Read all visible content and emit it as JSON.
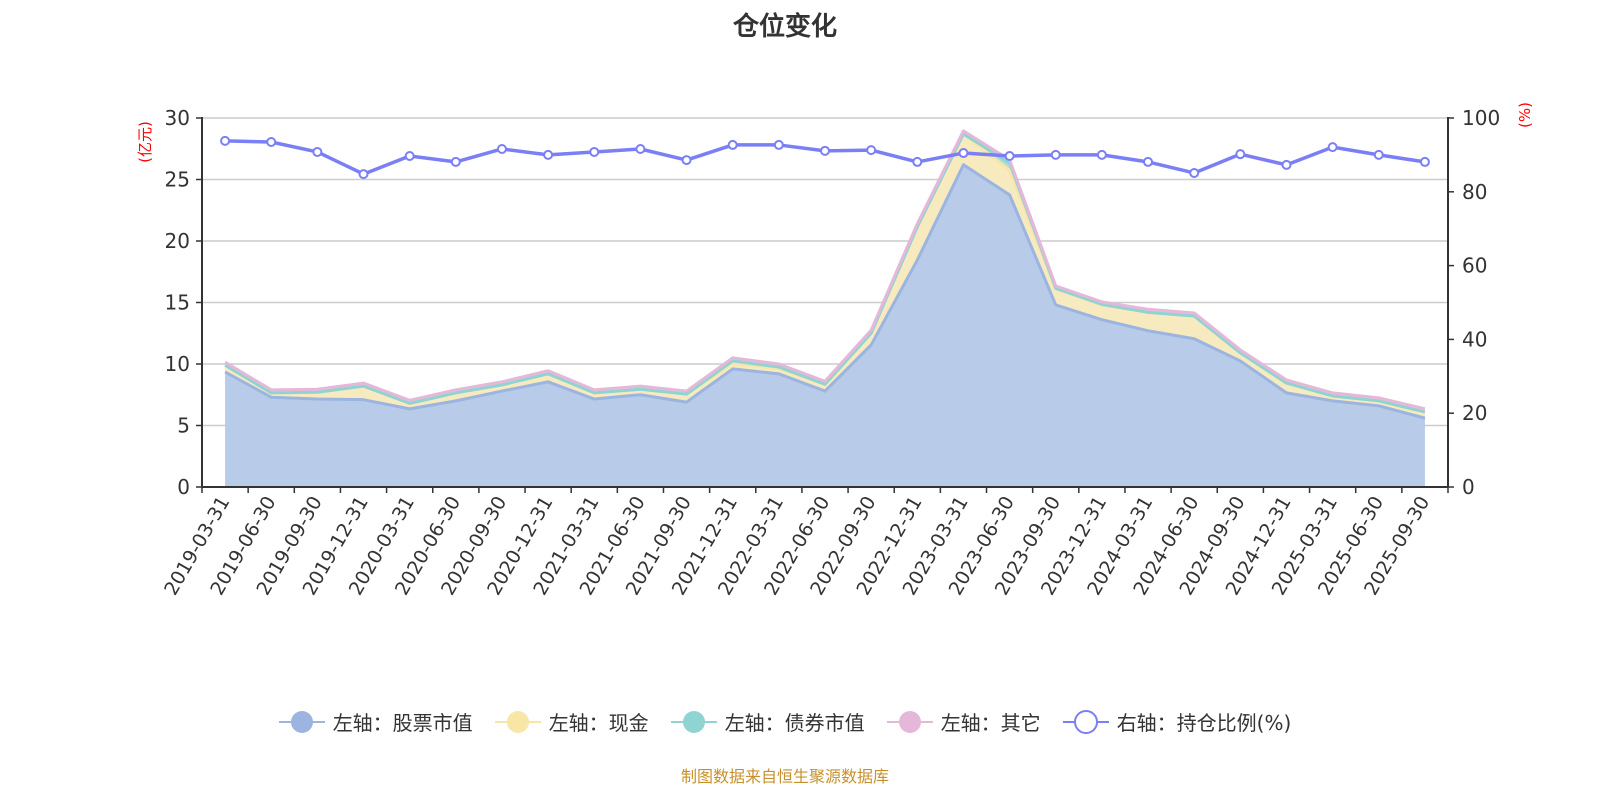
{
  "chart_data": {
    "type": "area",
    "title": "仓位变化",
    "left_axis_label": "(亿元)",
    "right_axis_label": "(%)",
    "left_ylim": [
      0,
      30
    ],
    "left_ticks": [
      0,
      5,
      10,
      15,
      20,
      25,
      30
    ],
    "right_ylim": [
      0,
      100
    ],
    "right_ticks": [
      0,
      20,
      40,
      60,
      80,
      100
    ],
    "grid": true,
    "legend_placement": "bottom",
    "categories": [
      "2019-03-31",
      "2019-06-30",
      "2019-09-30",
      "2019-12-31",
      "2020-03-31",
      "2020-06-30",
      "2020-09-30",
      "2020-12-31",
      "2021-03-31",
      "2021-06-30",
      "2021-09-30",
      "2021-12-31",
      "2022-03-31",
      "2022-06-30",
      "2022-09-30",
      "2022-12-31",
      "2023-03-31",
      "2023-06-30",
      "2023-09-30",
      "2023-12-31",
      "2024-03-31",
      "2024-06-30",
      "2024-09-30",
      "2024-12-31",
      "2025-03-31",
      "2025-06-30",
      "2025-09-30"
    ],
    "series": [
      {
        "name": "左轴：股票市值",
        "axis": "left",
        "stack": true,
        "color": "#9bb5e0",
        "fill": "#b8cbe8",
        "values": [
          9.35,
          7.3,
          7.15,
          7.1,
          6.35,
          7.0,
          7.8,
          8.55,
          7.15,
          7.5,
          6.9,
          9.6,
          9.2,
          7.8,
          11.55,
          18.45,
          26.2,
          23.75,
          14.8,
          13.6,
          12.7,
          12.05,
          10.25,
          7.65,
          7.0,
          6.6,
          5.6
        ]
      },
      {
        "name": "左轴：现金",
        "axis": "left",
        "stack": true,
        "color": "#f7e6a6",
        "fill": "#f8eabf",
        "values": [
          0.55,
          0.35,
          0.55,
          1.1,
          0.45,
          0.65,
          0.5,
          0.65,
          0.5,
          0.45,
          0.65,
          0.45,
          0.4,
          0.55,
          0.95,
          2.7,
          2.5,
          2.0,
          1.3,
          1.2,
          1.5,
          1.85,
          0.65,
          0.8,
          0.4,
          0.4,
          0.5
        ]
      },
      {
        "name": "左轴：债券市值",
        "axis": "left",
        "stack": true,
        "color": "#8fd3d3",
        "fill": "#a9dede",
        "values": [
          0,
          0,
          0,
          0,
          0,
          0,
          0,
          0,
          0,
          0,
          0,
          0.2,
          0.15,
          0,
          0,
          0,
          0,
          0.6,
          0.05,
          0.05,
          0,
          0,
          0,
          0,
          0,
          0,
          0
        ]
      },
      {
        "name": "左轴：其它",
        "axis": "left",
        "stack": true,
        "color": "#e5b8da",
        "fill": "#eccbe5",
        "values": [
          0.25,
          0.25,
          0.25,
          0.25,
          0.25,
          0.25,
          0.25,
          0.25,
          0.25,
          0.25,
          0.25,
          0.25,
          0.25,
          0.25,
          0.25,
          0.25,
          0.25,
          0.25,
          0.2,
          0.2,
          0.25,
          0.25,
          0.25,
          0.25,
          0.25,
          0.25,
          0.25
        ]
      },
      {
        "name": "右轴：持仓比例(%)",
        "axis": "right",
        "stack": false,
        "color": "#7b7ff5",
        "values": [
          93.8,
          93.5,
          90.8,
          84.8,
          89.7,
          88.1,
          91.6,
          90.0,
          90.8,
          91.6,
          88.6,
          92.7,
          92.7,
          91.1,
          91.3,
          88.1,
          90.5,
          89.7,
          90.0,
          90.0,
          88.1,
          85.1,
          90.2,
          87.3,
          92.1,
          90.0,
          88.1
        ]
      }
    ]
  },
  "footer": {
    "source": "制图数据来自恒生聚源数据库"
  }
}
